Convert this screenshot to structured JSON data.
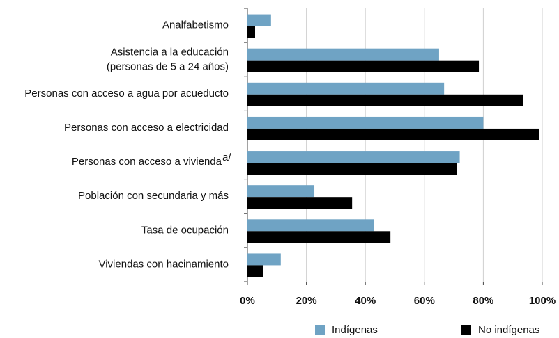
{
  "chart_data": {
    "type": "barh",
    "categories": [
      "Analfabetismo",
      "Asistencia a la educación\n(personas de 5 a 24 años)",
      "Personas con acceso a agua por acueducto",
      "Personas con acceso a electricidad",
      "Personas con acceso a vivienda",
      "Población con secundaria y más",
      "Tasa de ocupación",
      "Viviendas con hacinamiento"
    ],
    "category_superscripts": [
      null,
      null,
      null,
      null,
      "a/",
      null,
      null,
      null
    ],
    "series": [
      {
        "name": "Indígenas",
        "color": "#6fa3c4",
        "values": [
          8,
          65,
          66.7,
          80,
          72,
          22.7,
          43,
          11.3
        ]
      },
      {
        "name": "No indígenas",
        "color": "#000000",
        "values": [
          2.6,
          78.5,
          93.4,
          99,
          71,
          35.5,
          48.5,
          5.4
        ]
      }
    ],
    "xlim": [
      0,
      100
    ],
    "xticks": [
      {
        "value": 0,
        "label": "0%"
      },
      {
        "value": 20,
        "label": "20%"
      },
      {
        "value": 40,
        "label": "40%"
      },
      {
        "value": 60,
        "label": "60%"
      },
      {
        "value": 80,
        "label": "80%"
      },
      {
        "value": 100,
        "label": "100%"
      }
    ],
    "grid": true,
    "legend": "bottom"
  }
}
